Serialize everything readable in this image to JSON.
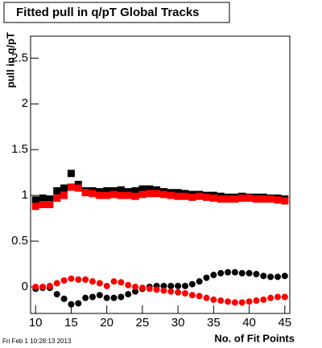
{
  "chart_data": {
    "type": "scatter",
    "title": "Fitted pull in q/pT  Global Tracks",
    "x_label": "No. of Fit Points",
    "y_label": "pull in q/pT",
    "timestamp": "Fri Feb  1 10:28:13 2013",
    "x": [
      10,
      11,
      12,
      13,
      14,
      15,
      16,
      17,
      18,
      19,
      20,
      21,
      22,
      23,
      24,
      25,
      26,
      27,
      28,
      29,
      30,
      31,
      32,
      33,
      34,
      35,
      36,
      37,
      38,
      39,
      40,
      41,
      42,
      43,
      44,
      45
    ],
    "series": [
      {
        "color": "#000000",
        "marker": "square",
        "values": [
          0.95,
          0.97,
          0.96,
          1.05,
          1.08,
          1.24,
          1.12,
          1.05,
          1.05,
          1.04,
          1.05,
          1.05,
          1.06,
          1.04,
          1.05,
          1.07,
          1.07,
          1.06,
          1.04,
          1.03,
          1.03,
          1.02,
          1.01,
          1.01,
          1.0,
          1.0,
          0.99,
          0.98,
          0.98,
          0.99,
          0.98,
          0.98,
          0.98,
          0.97,
          0.97,
          0.96
        ]
      },
      {
        "color": "#ff0000",
        "marker": "square",
        "values": [
          0.88,
          0.9,
          0.9,
          0.97,
          1.0,
          1.09,
          1.08,
          1.03,
          1.02,
          1.0,
          1.0,
          1.01,
          1.0,
          1.0,
          0.99,
          1.01,
          1.02,
          1.02,
          1.01,
          1.0,
          0.99,
          0.99,
          0.98,
          0.99,
          0.98,
          0.97,
          0.96,
          0.96,
          0.96,
          0.97,
          0.97,
          0.96,
          0.96,
          0.96,
          0.95,
          0.94
        ]
      },
      {
        "color": "#000000",
        "marker": "circle",
        "values": [
          -0.02,
          -0.01,
          -0.01,
          -0.08,
          -0.13,
          -0.19,
          -0.18,
          -0.12,
          -0.11,
          -0.09,
          -0.12,
          -0.12,
          -0.11,
          -0.08,
          -0.05,
          -0.02,
          0.0,
          0.01,
          0.01,
          0.01,
          0.01,
          0.01,
          0.03,
          0.06,
          0.1,
          0.13,
          0.15,
          0.16,
          0.16,
          0.15,
          0.15,
          0.14,
          0.12,
          0.11,
          0.11,
          0.12
        ]
      },
      {
        "color": "#ff0000",
        "marker": "circle",
        "values": [
          0.0,
          0.0,
          0.01,
          0.04,
          0.07,
          0.09,
          0.08,
          0.08,
          0.06,
          0.04,
          0.01,
          0.06,
          0.05,
          0.02,
          0.0,
          -0.01,
          -0.02,
          -0.03,
          -0.04,
          -0.05,
          -0.06,
          -0.07,
          -0.09,
          -0.1,
          -0.12,
          -0.14,
          -0.15,
          -0.16,
          -0.17,
          -0.17,
          -0.16,
          -0.15,
          -0.14,
          -0.12,
          -0.11,
          -0.11
        ]
      }
    ],
    "xlim": [
      9.3,
      45.7
    ],
    "ylim": [
      -0.29,
      2.74
    ],
    "xticks": [
      10,
      15,
      20,
      25,
      30,
      35,
      40,
      45
    ],
    "yticks": [
      0,
      0.5,
      1,
      1.5,
      2,
      2.5
    ]
  }
}
